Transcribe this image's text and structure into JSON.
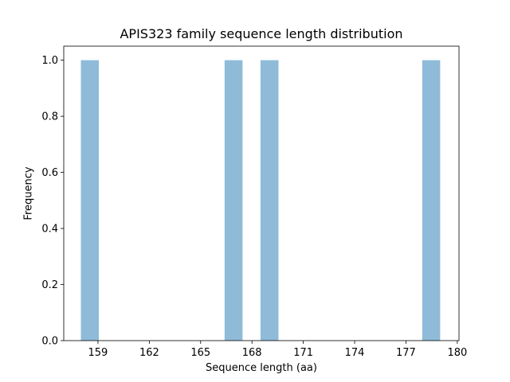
{
  "chart_data": {
    "type": "bar",
    "title": "APIS323 family sequence length distribution",
    "xlabel": "Sequence length (aa)",
    "ylabel": "Frequency",
    "xlim": [
      157.0,
      180.1
    ],
    "ylim": [
      0,
      1.05
    ],
    "xticks": [
      159,
      162,
      165,
      168,
      171,
      174,
      177,
      180
    ],
    "yticks": [
      0.0,
      0.2,
      0.4,
      0.6,
      0.8,
      1.0
    ],
    "bin_width": 1.05,
    "bars": [
      {
        "x_start": 158.0,
        "x_end": 159.05,
        "count": 1
      },
      {
        "x_start": 166.4,
        "x_end": 167.45,
        "count": 1
      },
      {
        "x_start": 168.5,
        "x_end": 169.55,
        "count": 1
      },
      {
        "x_start": 177.95,
        "x_end": 179.0,
        "count": 1
      }
    ],
    "bar_color": "#8fbbd9",
    "grid": false,
    "legend": "none"
  }
}
